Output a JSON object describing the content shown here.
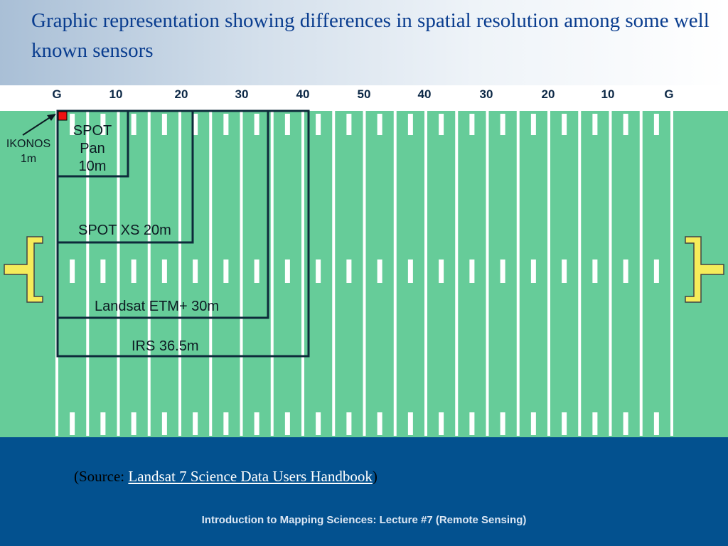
{
  "title": "Graphic representation showing differences in spatial resolution among some well known sensors",
  "field": {
    "yard_labels": [
      "G",
      "10",
      "20",
      "30",
      "40",
      "50",
      "40",
      "30",
      "20",
      "10",
      "G"
    ],
    "colors": {
      "grass": "#66cc99",
      "lines": "#ffffff",
      "boxes": "#0d2a3a",
      "goalpost": "#f5ec5a",
      "ikonos": "#ee1111"
    }
  },
  "sensors": [
    {
      "name": "IKONOS",
      "resolution": "1m",
      "resolution_m": 1,
      "label": "IKONOS\n1m"
    },
    {
      "name": "SPOT Pan",
      "resolution": "10m",
      "resolution_m": 10,
      "label": "SPOT\nPan\n10m"
    },
    {
      "name": "SPOT XS",
      "resolution": "20m",
      "resolution_m": 20,
      "label": "SPOT XS 20m"
    },
    {
      "name": "Landsat ETM+",
      "resolution": "30m",
      "resolution_m": 30,
      "label": "Landsat ETM+ 30m"
    },
    {
      "name": "IRS",
      "resolution": "36.5m",
      "resolution_m": 36.5,
      "label": "IRS 36.5m"
    }
  ],
  "source": {
    "prefix": "(Source: ",
    "link_text": "Landsat 7 Science Data Users Handbook",
    "suffix": ")"
  },
  "footer_text": "Introduction to Mapping Sciences: Lecture #7  (Remote Sensing)"
}
